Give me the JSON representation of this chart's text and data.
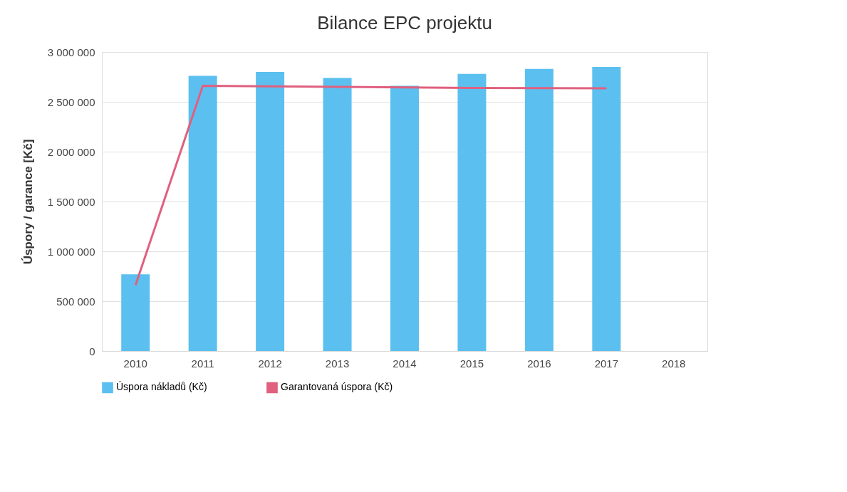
{
  "chart_data": {
    "type": "bar",
    "title": "Bilance EPC projektu",
    "ylabel": "Úspory / garance [Kč]",
    "categories": [
      "2010",
      "2011",
      "2012",
      "2013",
      "2014",
      "2015",
      "2016",
      "2017",
      "2018"
    ],
    "series": [
      {
        "name": "Úspora nákladů (Kč)",
        "color": "#5bc0f0",
        "values": [
          770000,
          2760000,
          2800000,
          2740000,
          2660000,
          2780000,
          2830000,
          2850000,
          null
        ]
      },
      {
        "name": "Garantovaná úspora (Kč)",
        "type": "line",
        "color": "#e0607e",
        "values": [
          660000,
          2660000,
          2655000,
          2650000,
          2645000,
          2640000,
          2638000,
          2636000,
          null
        ]
      }
    ],
    "ylim": [
      0,
      3000000
    ],
    "yticks": [
      {
        "value": 0,
        "label": "0"
      },
      {
        "value": 500000,
        "label": "500 000"
      },
      {
        "value": 1000000,
        "label": "1 000 000"
      },
      {
        "value": 1500000,
        "label": "1 500 000"
      },
      {
        "value": 2000000,
        "label": "2 000 000"
      },
      {
        "value": 2500000,
        "label": "2 500 000"
      },
      {
        "value": 3000000,
        "label": "3 000 000"
      }
    ],
    "grid": "y",
    "legend": "bottom",
    "marker": "none",
    "line_style": "solid"
  }
}
